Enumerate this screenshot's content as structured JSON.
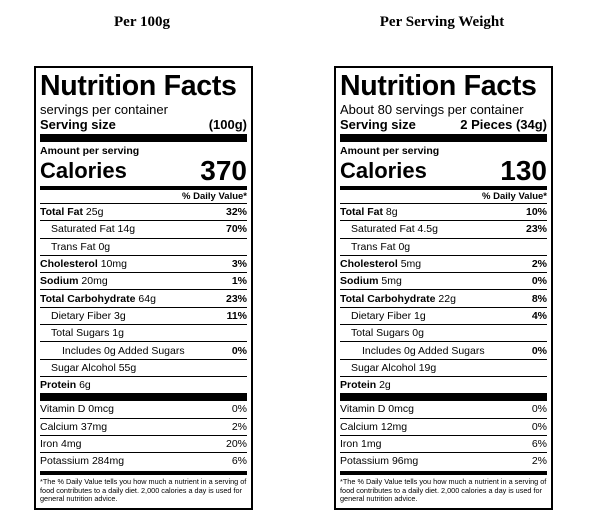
{
  "columns": [
    {
      "heading": "Per 100g",
      "label": {
        "title": "Nutrition Facts",
        "servings": "servings per container",
        "serving_size_label": "Serving size",
        "serving_size_value": "(100g)",
        "amount_label": "Amount per serving",
        "calories_label": "Calories",
        "calories_value": "370",
        "dv_header": "% Daily Value*",
        "nutrients": [
          {
            "name": "Total Fat",
            "amount": "25g",
            "dv": "32%",
            "bold": true,
            "indent": 0
          },
          {
            "name": "Saturated Fat",
            "amount": "14g",
            "dv": "70%",
            "bold": false,
            "indent": 1
          },
          {
            "name": "Trans Fat",
            "amount": "0g",
            "dv": "",
            "bold": false,
            "indent": 1
          },
          {
            "name": "Cholesterol",
            "amount": "10mg",
            "dv": "3%",
            "bold": true,
            "indent": 0
          },
          {
            "name": "Sodium",
            "amount": "20mg",
            "dv": "1%",
            "bold": true,
            "indent": 0
          },
          {
            "name": "Total Carbohydrate",
            "amount": "64g",
            "dv": "23%",
            "bold": true,
            "indent": 0
          },
          {
            "name": "Dietary Fiber",
            "amount": "3g",
            "dv": "11%",
            "bold": false,
            "indent": 1
          },
          {
            "name": "Total Sugars",
            "amount": "1g",
            "dv": "",
            "bold": false,
            "indent": 1
          },
          {
            "name": "Includes 0g Added Sugars",
            "amount": "",
            "dv": "0%",
            "bold": false,
            "indent": 2
          },
          {
            "name": "Sugar Alcohol",
            "amount": "55g",
            "dv": "",
            "bold": false,
            "indent": 1
          },
          {
            "name": "Protein",
            "amount": "6g",
            "dv": "",
            "bold": true,
            "indent": 0
          }
        ],
        "vitamins": [
          {
            "name": "Vitamin D",
            "amount": "0mcg",
            "dv": "0%"
          },
          {
            "name": "Calcium",
            "amount": "37mg",
            "dv": "2%"
          },
          {
            "name": "Iron",
            "amount": "4mg",
            "dv": "20%"
          },
          {
            "name": "Potassium",
            "amount": "284mg",
            "dv": "6%"
          }
        ],
        "footnote": "*The % Daily Value tells you how much a nutrient in a serving of food contributes to a daily diet. 2,000 calories a day is used for general nutrition advice."
      }
    },
    {
      "heading": "Per Serving Weight",
      "label": {
        "title": "Nutrition Facts",
        "servings": "About 80 servings per container",
        "serving_size_label": "Serving size",
        "serving_size_value": "2 Pieces (34g)",
        "amount_label": "Amount per serving",
        "calories_label": "Calories",
        "calories_value": "130",
        "dv_header": "% Daily Value*",
        "nutrients": [
          {
            "name": "Total Fat",
            "amount": "8g",
            "dv": "10%",
            "bold": true,
            "indent": 0
          },
          {
            "name": "Saturated Fat",
            "amount": "4.5g",
            "dv": "23%",
            "bold": false,
            "indent": 1
          },
          {
            "name": "Trans Fat",
            "amount": "0g",
            "dv": "",
            "bold": false,
            "indent": 1
          },
          {
            "name": "Cholesterol",
            "amount": "5mg",
            "dv": "2%",
            "bold": true,
            "indent": 0
          },
          {
            "name": "Sodium",
            "amount": "5mg",
            "dv": "0%",
            "bold": true,
            "indent": 0
          },
          {
            "name": "Total Carbohydrate",
            "amount": "22g",
            "dv": "8%",
            "bold": true,
            "indent": 0
          },
          {
            "name": "Dietary Fiber",
            "amount": "1g",
            "dv": "4%",
            "bold": false,
            "indent": 1
          },
          {
            "name": "Total Sugars",
            "amount": "0g",
            "dv": "",
            "bold": false,
            "indent": 1
          },
          {
            "name": "Includes 0g Added Sugars",
            "amount": "",
            "dv": "0%",
            "bold": false,
            "indent": 2
          },
          {
            "name": "Sugar Alcohol",
            "amount": "19g",
            "dv": "",
            "bold": false,
            "indent": 1
          },
          {
            "name": "Protein",
            "amount": "2g",
            "dv": "",
            "bold": true,
            "indent": 0
          }
        ],
        "vitamins": [
          {
            "name": "Vitamin D",
            "amount": "0mcg",
            "dv": "0%"
          },
          {
            "name": "Calcium",
            "amount": "12mg",
            "dv": "0%"
          },
          {
            "name": "Iron",
            "amount": "1mg",
            "dv": "6%"
          },
          {
            "name": "Potassium",
            "amount": "96mg",
            "dv": "2%"
          }
        ],
        "footnote": "*The % Daily Value tells you how much a nutrient in a serving of food contributes to a daily diet. 2,000 calories a day is used for general nutrition advice."
      }
    }
  ]
}
